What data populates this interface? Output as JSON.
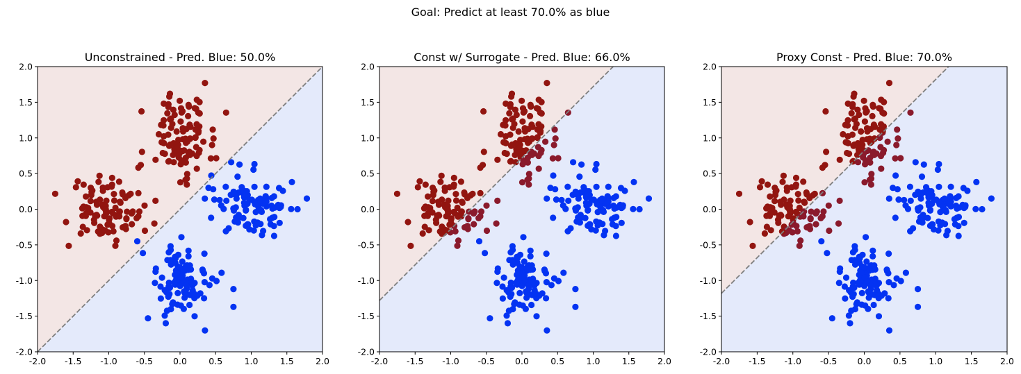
{
  "figure": {
    "suptitle": "Goal: Predict at least 70.0% as blue"
  },
  "colors": {
    "blue_point": "#0433f2",
    "red_point": "#921510",
    "red_misclassified": "#8a1a2c",
    "red_region": "#f3e6e5",
    "blue_region": "#e4eafb",
    "boundary": "#7f7f7f"
  },
  "chart_data": [
    {
      "type": "scatter",
      "title": "Unconstrained - Pred. Blue: 50.0%",
      "xlim": [
        -2.0,
        2.0
      ],
      "ylim": [
        -2.0,
        2.0
      ],
      "xticks": [
        "-2.0",
        "-1.5",
        "-1.0",
        "-0.5",
        "0.0",
        "0.5",
        "1.0",
        "1.5",
        "2.0"
      ],
      "yticks": [
        "-2.0",
        "-1.5",
        "-1.0",
        "-0.5",
        "0.0",
        "0.5",
        "1.0",
        "1.5",
        "2.0"
      ],
      "decision_boundary": {
        "slope": 1.0,
        "intercept": 0.0,
        "style": "dashed"
      }
    },
    {
      "type": "scatter",
      "title": "Const w/ Surrogate - Pred. Blue: 66.0%",
      "xlim": [
        -2.0,
        2.0
      ],
      "ylim": [
        -2.0,
        2.0
      ],
      "xticks": [
        "-2.0",
        "-1.5",
        "-1.0",
        "-0.5",
        "0.0",
        "0.5",
        "1.0",
        "1.5",
        "2.0"
      ],
      "yticks": [
        "-2.0",
        "-1.5",
        "-1.0",
        "-0.5",
        "0.0",
        "0.5",
        "1.0",
        "1.5",
        "2.0"
      ],
      "decision_boundary": {
        "slope": 1.0,
        "intercept": 0.72,
        "style": "dashed"
      }
    },
    {
      "type": "scatter",
      "title": "Proxy Const - Pred. Blue: 70.0%",
      "xlim": [
        -2.0,
        2.0
      ],
      "ylim": [
        -2.0,
        2.0
      ],
      "xticks": [
        "-2.0",
        "-1.5",
        "-1.0",
        "-0.5",
        "0.0",
        "0.5",
        "1.0",
        "1.5",
        "2.0"
      ],
      "yticks": [
        "-2.0",
        "-1.5",
        "-1.0",
        "-0.5",
        "0.0",
        "0.5",
        "1.0",
        "1.5",
        "2.0"
      ],
      "decision_boundary": {
        "slope": 1.0,
        "intercept": 0.82,
        "style": "dashed"
      }
    }
  ],
  "clusters": {
    "red": [
      {
        "x": -1.02,
        "y": 0.0,
        "sdx": 0.28,
        "sdy": 0.24
      },
      {
        "x": 0.0,
        "y": 1.02,
        "sdx": 0.22,
        "sdy": 0.26
      }
    ],
    "blue": [
      {
        "x": 1.0,
        "y": 0.05,
        "sdx": 0.26,
        "sdy": 0.22
      },
      {
        "x": 0.0,
        "y": -1.02,
        "sdx": 0.2,
        "sdy": 0.24
      }
    ],
    "points_per_cluster": 100,
    "red_extra": [
      [
        -0.15,
        1.58
      ],
      [
        0.35,
        1.77
      ],
      [
        -1.6,
        -0.18
      ],
      [
        -0.55,
        0.62
      ],
      [
        0.45,
        0.9
      ]
    ],
    "blue_extra": [
      [
        -0.6,
        -0.45
      ],
      [
        1.78,
        0.15
      ],
      [
        1.65,
        0.0
      ],
      [
        0.35,
        -1.7
      ],
      [
        -0.45,
        -1.53
      ],
      [
        -0.2,
        -1.6
      ],
      [
        0.75,
        -1.12
      ],
      [
        0.75,
        -1.37
      ],
      [
        0.4,
        0.3
      ]
    ]
  }
}
